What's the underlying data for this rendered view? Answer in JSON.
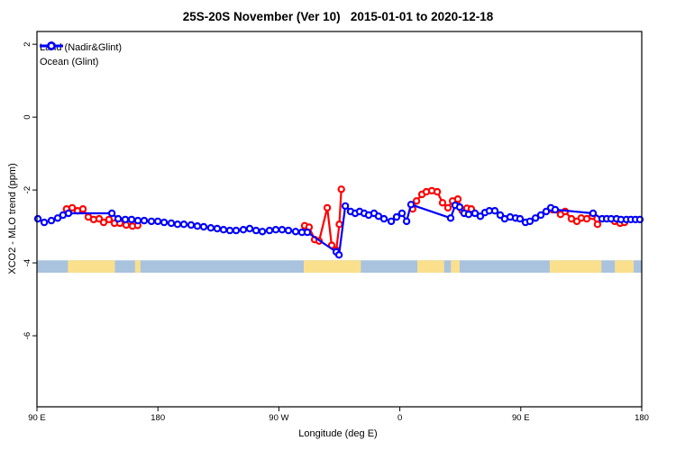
{
  "chart_data": {
    "type": "line",
    "title": "25S-20S November (Ver 10)   2015-01-01 to 2020-12-18",
    "xlabel": "Longitude (deg E)",
    "ylabel": "XCO2 - MLO trend (ppm)",
    "xlim": [
      90,
      540
    ],
    "ylim": [
      -7.95,
      2.35
    ],
    "x_axis_note": "longitude wraps eastward: 90E, 180, 90W, 0, 90E, 180",
    "x_ticks": [
      {
        "lon": 90,
        "label": "90 E"
      },
      {
        "lon": 180,
        "label": "180"
      },
      {
        "lon": 270,
        "label": "90 W"
      },
      {
        "lon": 360,
        "label": "0"
      },
      {
        "lon": 450,
        "label": "90 E"
      },
      {
        "lon": 540,
        "label": "180"
      }
    ],
    "y_ticks": [
      {
        "v": 2,
        "label": "2"
      },
      {
        "v": 0,
        "label": "0"
      },
      {
        "v": -2,
        "label": "-2"
      },
      {
        "v": -4,
        "label": "-4"
      },
      {
        "v": -6,
        "label": "-6"
      }
    ],
    "grid": false,
    "legend_position": "top-left",
    "map_strip": {
      "value_top": -3.93,
      "value_bottom": -4.27,
      "ocean_color": "#a9c3df",
      "land_color": "#fadf8d",
      "land_patches_lon": [
        [
          113,
          148
        ],
        [
          163,
          167
        ],
        [
          288.5,
          331
        ],
        [
          373,
          393
        ],
        [
          398,
          404.5
        ],
        [
          471.5,
          510
        ],
        [
          520,
          534
        ]
      ]
    },
    "series": [
      {
        "name": "Land (Nadir&Glint)",
        "color": "#ff0000",
        "segments": [
          [
            [
              112,
              -2.52
            ],
            [
              116.2,
              -2.49
            ],
            [
              120.2,
              -2.57
            ],
            [
              124.2,
              -2.52
            ],
            [
              128.2,
              -2.74
            ],
            [
              132.2,
              -2.81
            ],
            [
              136.3,
              -2.79
            ],
            [
              139.6,
              -2.89
            ],
            [
              143.6,
              -2.81
            ],
            [
              147.7,
              -2.91
            ],
            [
              151.7,
              -2.91
            ],
            [
              156.4,
              -2.96
            ],
            [
              161.1,
              -2.99
            ],
            [
              165,
              -2.97
            ]
          ],
          [
            [
              289.2,
              -2.98
            ],
            [
              292.5,
              -3.02
            ],
            [
              296.6,
              -3.36
            ],
            [
              299.9,
              -3.4
            ],
            [
              306,
              -2.49
            ],
            [
              309.3,
              -3.52
            ],
            [
              312.7,
              -3.65
            ],
            [
              315,
              -2.94
            ],
            [
              316.5,
              -1.98
            ]
          ],
          [
            [
              369.5,
              -2.52
            ],
            [
              372.4,
              -2.3
            ],
            [
              376.4,
              -2.12
            ],
            [
              379.7,
              -2.05
            ],
            [
              383.8,
              -2.02
            ],
            [
              387.8,
              -2.05
            ],
            [
              391.8,
              -2.35
            ],
            [
              395.8,
              -2.49
            ],
            [
              399.2,
              -2.3
            ],
            [
              403.2,
              -2.25
            ],
            [
              406.5,
              -2.57
            ],
            [
              409.9,
              -2.5
            ],
            [
              413.2,
              -2.52
            ]
          ],
          [
            [
              473.6,
              -2.54
            ],
            [
              479.6,
              -2.67
            ],
            [
              483,
              -2.59
            ],
            [
              487.7,
              -2.79
            ],
            [
              491.7,
              -2.86
            ],
            [
              495,
              -2.77
            ],
            [
              499.1,
              -2.79
            ],
            [
              503.1,
              -2.72
            ],
            [
              507.1,
              -2.94
            ]
          ],
          [
            [
              519.9,
              -2.86
            ],
            [
              523.9,
              -2.91
            ],
            [
              527.2,
              -2.89
            ]
          ]
        ]
      },
      {
        "name": "Ocean (Glint)",
        "color": "#0000ff",
        "segments": [
          [
            [
              90.7,
              -2.79
            ],
            [
              95.4,
              -2.89
            ],
            [
              100.7,
              -2.84
            ],
            [
              105.4,
              -2.77
            ],
            [
              109.4,
              -2.69
            ],
            [
              113.5,
              -2.64
            ],
            [
              145.7,
              -2.64
            ],
            [
              150.4,
              -2.79
            ],
            [
              155.7,
              -2.81
            ],
            [
              160.4,
              -2.81
            ],
            [
              165.1,
              -2.84
            ],
            [
              169.8,
              -2.84
            ],
            [
              175.2,
              -2.86
            ],
            [
              179.9,
              -2.86
            ],
            [
              184.6,
              -2.89
            ],
            [
              189.9,
              -2.91
            ],
            [
              194.6,
              -2.94
            ],
            [
              199.3,
              -2.94
            ],
            [
              204.7,
              -2.96
            ],
            [
              209.4,
              -2.99
            ],
            [
              214.1,
              -3.01
            ],
            [
              219.4,
              -3.04
            ],
            [
              224.1,
              -3.06
            ],
            [
              228.8,
              -3.09
            ],
            [
              233.5,
              -3.11
            ],
            [
              238.2,
              -3.11
            ],
            [
              243.6,
              -3.09
            ],
            [
              248.3,
              -3.06
            ],
            [
              253,
              -3.11
            ],
            [
              257.7,
              -3.14
            ],
            [
              263,
              -3.11
            ],
            [
              267.7,
              -3.09
            ],
            [
              272.4,
              -3.09
            ],
            [
              277.1,
              -3.11
            ],
            [
              282.5,
              -3.14
            ],
            [
              287.2,
              -3.16
            ],
            [
              291.2,
              -3.16
            ],
            [
              312.7,
              -3.7
            ],
            [
              314.7,
              -3.78
            ],
            [
              319.4,
              -2.44
            ],
            [
              323.4,
              -2.59
            ],
            [
              326.8,
              -2.64
            ],
            [
              330.1,
              -2.59
            ],
            [
              333.5,
              -2.64
            ],
            [
              336.8,
              -2.69
            ],
            [
              340.8,
              -2.64
            ],
            [
              344.2,
              -2.72
            ],
            [
              348.2,
              -2.79
            ],
            [
              353.6,
              -2.86
            ],
            [
              357.6,
              -2.74
            ],
            [
              361.6,
              -2.64
            ],
            [
              365,
              -2.86
            ],
            [
              368.3,
              -2.4
            ],
            [
              397.8,
              -2.77
            ],
            [
              401.2,
              -2.42
            ],
            [
              404.5,
              -2.47
            ],
            [
              407.9,
              -2.64
            ],
            [
              411.2,
              -2.67
            ],
            [
              415.9,
              -2.64
            ],
            [
              419.9,
              -2.72
            ],
            [
              423.3,
              -2.62
            ],
            [
              426.6,
              -2.57
            ],
            [
              430.7,
              -2.57
            ],
            [
              434.7,
              -2.69
            ],
            [
              438,
              -2.79
            ],
            [
              442.1,
              -2.74
            ],
            [
              446.1,
              -2.77
            ],
            [
              449.4,
              -2.79
            ],
            [
              453.5,
              -2.89
            ],
            [
              456.8,
              -2.86
            ],
            [
              460.9,
              -2.77
            ],
            [
              464.9,
              -2.69
            ],
            [
              468.9,
              -2.59
            ],
            [
              472.3,
              -2.49
            ],
            [
              475.6,
              -2.54
            ],
            [
              503.8,
              -2.64
            ],
            [
              510.5,
              -2.79
            ],
            [
              513.9,
              -2.79
            ],
            [
              517.2,
              -2.79
            ],
            [
              521.2,
              -2.79
            ],
            [
              524.6,
              -2.81
            ],
            [
              528.6,
              -2.81
            ],
            [
              531.9,
              -2.81
            ],
            [
              535.3,
              -2.81
            ],
            [
              538.6,
              -2.81
            ]
          ]
        ]
      }
    ]
  }
}
